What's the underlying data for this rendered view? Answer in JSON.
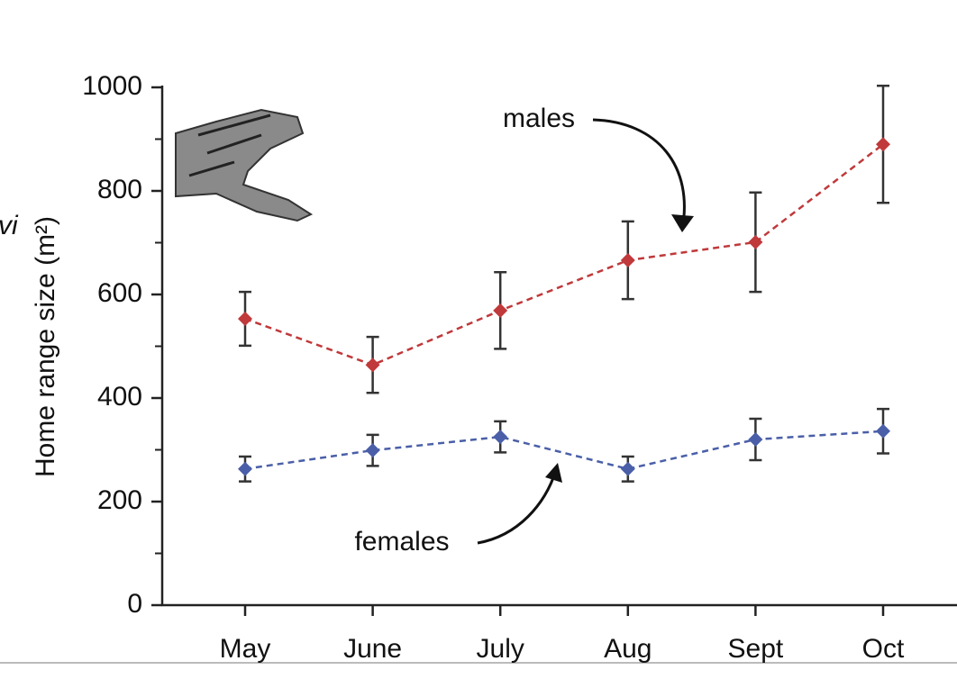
{
  "chart_data": {
    "type": "line",
    "y_label": "Home range size (m²)",
    "categories": [
      "May",
      "June",
      "July",
      "Aug",
      "Sept",
      "Oct"
    ],
    "series": [
      {
        "name": "males",
        "color": "#c0393b",
        "values": [
          553,
          464,
          569,
          666,
          701,
          890
        ],
        "errors": [
          52,
          54,
          74,
          75,
          96,
          113
        ]
      },
      {
        "name": "females",
        "color": "#4a5fa8",
        "values": [
          263,
          299,
          325,
          263,
          320,
          336
        ],
        "errors": [
          24,
          30,
          30,
          24,
          40,
          43
        ]
      }
    ],
    "ylim": [
      0,
      1000
    ],
    "yticks": [
      0,
      200,
      400,
      600,
      800,
      1000
    ],
    "yminorticks": [
      100,
      300,
      500,
      700,
      900
    ],
    "cut_off_label": "vi"
  }
}
